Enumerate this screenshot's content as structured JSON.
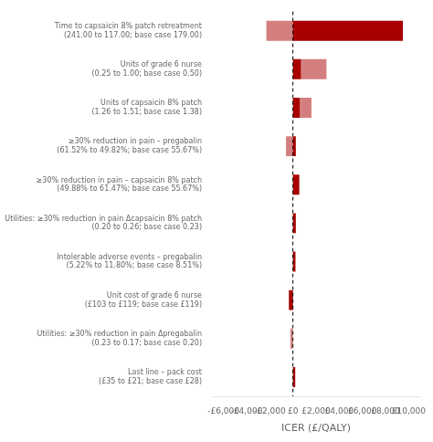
{
  "chart_data": {
    "type": "bar",
    "orientation": "horizontal",
    "categories": [
      "Time to capsaicin 8% patch retreatment\n(241.00 to 117.00; base case 179.00)",
      "Units of grade 6 nurse\n(0.25 to 1.00; base case 0.50)",
      "Units of capsaicin 8% patch\n(1.26 to 1.51; base case 1.38)",
      "≥30% reduction in pain – pregabalin\n(61.52% to 49.82%; base case 55.67%)",
      "≥30% reduction in pain – capsaicin 8% patch\n(49.88% to 61.47%; base case 55.67%)",
      "Utilities: ≥30% reduction in pain Δcapsaicin 8% patch\n(0.20 to 0.26; base case 0.23)",
      "Intolerable adverse events – pregabalin\n(5.22% to 11.80%; base case 8.51%)",
      "Unit cost of grade 6 nurse\n(£103 to £119; base case £119)",
      "Utilities: ≥30% reduction in pain Δpregabalin\n(0.23 to 0.17; base case 0.20)",
      "Last line – pack cost\n(£35 to £21; base case £28)"
    ],
    "series": [
      {
        "color": "#a80000",
        "values": [
          [
            0,
            9500
          ],
          [
            0,
            700
          ],
          [
            0,
            600
          ],
          [
            0,
            250
          ],
          [
            0,
            550
          ],
          [
            0,
            250
          ],
          [
            0,
            220
          ],
          [
            -350,
            0
          ],
          [
            0,
            0
          ],
          [
            0,
            200
          ]
        ]
      },
      {
        "color": "#d47f7f",
        "values": [
          [
            -2300,
            0
          ],
          [
            700,
            2900
          ],
          [
            600,
            1600
          ],
          [
            -600,
            0
          ],
          [
            0,
            0
          ],
          [
            0,
            0
          ],
          [
            0,
            0
          ],
          [
            0,
            0
          ],
          [
            -220,
            0
          ],
          [
            0,
            0
          ]
        ]
      }
    ],
    "xlabel": "ICER (£/QALY)",
    "xlim": [
      -7000,
      11000
    ],
    "xticks": [
      {
        "value": -6000,
        "label": "-£6,000"
      },
      {
        "value": -4000,
        "label": "-£4,000"
      },
      {
        "value": -2000,
        "label": "-£2,000"
      },
      {
        "value": 0,
        "label": "£0"
      },
      {
        "value": 2000,
        "label": "£2,000"
      },
      {
        "value": 4000,
        "label": "£4,000"
      },
      {
        "value": 6000,
        "label": "£6,000"
      },
      {
        "value": 8000,
        "label": "£8,000"
      },
      {
        "value": 10000,
        "label": "£10,000"
      }
    ],
    "grid": false
  }
}
